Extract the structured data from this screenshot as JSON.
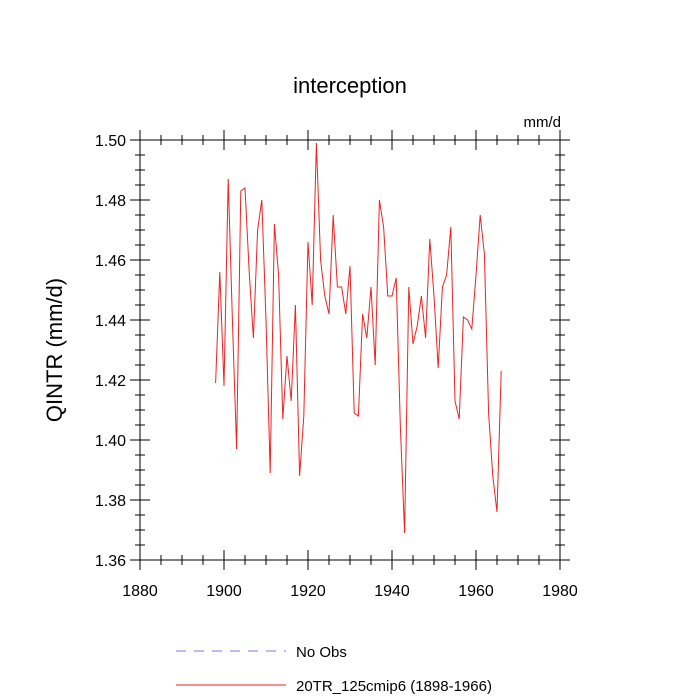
{
  "chart_data": {
    "type": "line",
    "title": "interception",
    "units_label": "mm/d",
    "ylabel": "QINTR  (mm/d)",
    "xlabel": "",
    "xlim": [
      1880,
      1980
    ],
    "ylim": [
      1.36,
      1.5
    ],
    "x_ticks": [
      1880,
      1900,
      1920,
      1940,
      1960,
      1980
    ],
    "x_tick_labels": [
      "1880",
      "1900",
      "1920",
      "1940",
      "1960",
      "1980"
    ],
    "y_ticks": [
      1.36,
      1.38,
      1.4,
      1.42,
      1.44,
      1.46,
      1.48,
      1.5
    ],
    "y_tick_labels": [
      "1.36",
      "1.38",
      "1.40",
      "1.42",
      "1.44",
      "1.46",
      "1.48",
      "1.50"
    ],
    "grid": false,
    "legend_position": "bottom",
    "legend": [
      {
        "label": "No Obs",
        "color": "#7777ee",
        "style": "dashed"
      },
      {
        "label": "20TR_125cmip6 (1898-1966)",
        "color": "#ee2222",
        "style": "solid"
      }
    ],
    "series": [
      {
        "name": "20TR_125cmip6 (1898-1966)",
        "color": "#ee2222",
        "x": [
          1898,
          1899,
          1900,
          1901,
          1902,
          1903,
          1904,
          1905,
          1906,
          1907,
          1908,
          1909,
          1910,
          1911,
          1912,
          1913,
          1914,
          1915,
          1916,
          1917,
          1918,
          1919,
          1920,
          1921,
          1922,
          1923,
          1924,
          1925,
          1926,
          1927,
          1928,
          1929,
          1930,
          1931,
          1932,
          1933,
          1934,
          1935,
          1936,
          1937,
          1938,
          1939,
          1940,
          1941,
          1942,
          1943,
          1944,
          1945,
          1946,
          1947,
          1948,
          1949,
          1950,
          1951,
          1952,
          1953,
          1954,
          1955,
          1956,
          1957,
          1958,
          1959,
          1960,
          1961,
          1962,
          1963,
          1964,
          1965,
          1966
        ],
        "values": [
          1.419,
          1.456,
          1.418,
          1.487,
          1.44,
          1.397,
          1.483,
          1.484,
          1.456,
          1.434,
          1.47,
          1.48,
          1.44,
          1.389,
          1.472,
          1.455,
          1.407,
          1.428,
          1.413,
          1.445,
          1.388,
          1.408,
          1.466,
          1.445,
          1.499,
          1.46,
          1.448,
          1.442,
          1.475,
          1.451,
          1.451,
          1.442,
          1.458,
          1.409,
          1.408,
          1.442,
          1.434,
          1.451,
          1.425,
          1.48,
          1.471,
          1.448,
          1.448,
          1.454,
          1.404,
          1.369,
          1.451,
          1.432,
          1.438,
          1.448,
          1.434,
          1.467,
          1.448,
          1.424,
          1.451,
          1.455,
          1.471,
          1.413,
          1.407,
          1.441,
          1.44,
          1.437,
          1.455,
          1.475,
          1.462,
          1.409,
          1.388,
          1.376,
          1.423
        ]
      }
    ]
  }
}
